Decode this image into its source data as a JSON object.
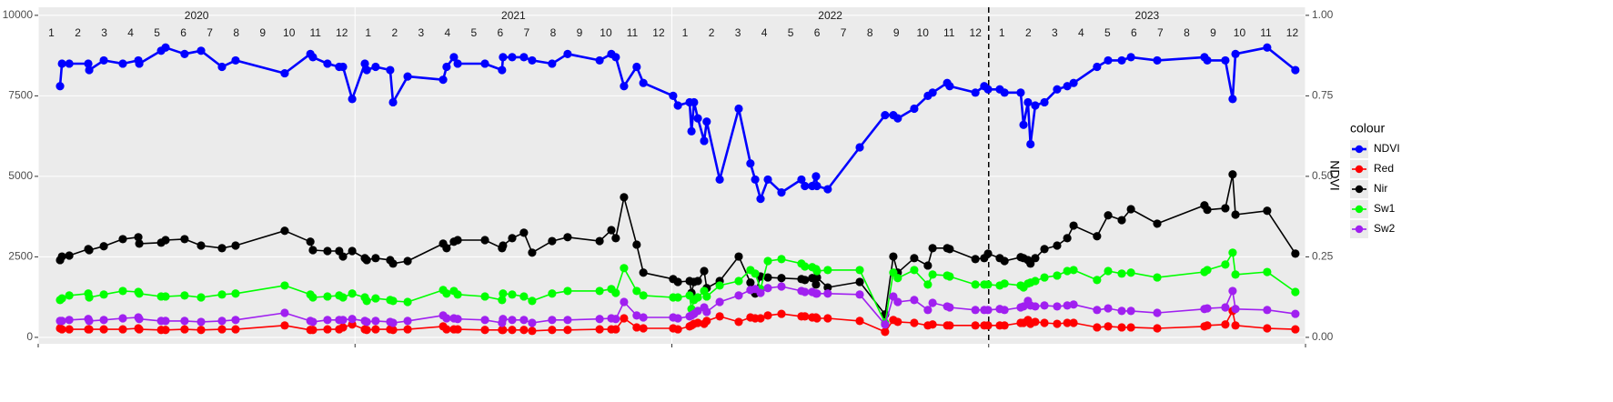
{
  "chart_data": {
    "type": "line",
    "year_labels": [
      "2020",
      "2021",
      "2022",
      "2023"
    ],
    "month_labels": [
      "1",
      "2",
      "3",
      "4",
      "5",
      "6",
      "7",
      "8",
      "9",
      "10",
      "11",
      "12"
    ],
    "y2label": "NDVI",
    "legend_title": "colour",
    "legend": "right",
    "grid": true,
    "vline": 2023,
    "xlim": [
      2020,
      2024
    ],
    "xticks": [
      2020,
      2021,
      2022,
      2023,
      2024
    ],
    "ylim": [
      -200,
      10250
    ],
    "yticks": [
      0,
      2500,
      5000,
      7500,
      10000
    ],
    "y2lim": [
      -0.02,
      1.025
    ],
    "y2ticks": [
      {
        "value": 0,
        "label": "0.00"
      },
      {
        "value": 0.25,
        "label": "0.25"
      },
      {
        "value": 0.5,
        "label": "0.50"
      },
      {
        "value": 0.75,
        "label": "0.75"
      },
      {
        "value": 1,
        "label": "1.00"
      }
    ],
    "x": [
      2020.069,
      2020.075,
      2020.098,
      2020.158,
      2020.161,
      2020.207,
      2020.267,
      2020.316,
      2020.319,
      2020.388,
      2020.402,
      2020.462,
      2020.514,
      2020.58,
      2020.623,
      2020.778,
      2020.859,
      2020.867,
      2020.913,
      2020.95,
      2020.962,
      2020.991,
      2021.031,
      2021.037,
      2021.065,
      2021.111,
      2021.12,
      2021.166,
      2021.278,
      2021.289,
      2021.312,
      2021.324,
      2021.41,
      2021.464,
      2021.467,
      2021.496,
      2021.533,
      2021.559,
      2021.622,
      2021.671,
      2021.772,
      2021.809,
      2021.823,
      2021.849,
      2021.889,
      2021.91,
      2022.004,
      2022.019,
      2022.056,
      2022.062,
      2022.07,
      2022.082,
      2022.102,
      2022.11,
      2022.151,
      2022.211,
      2022.248,
      2022.263,
      2022.28,
      2022.303,
      2022.346,
      2022.409,
      2022.42,
      2022.443,
      2022.455,
      2022.458,
      2022.492,
      2022.593,
      2022.673,
      2022.699,
      2022.713,
      2022.765,
      2022.808,
      2022.823,
      2022.869,
      2022.877,
      2022.958,
      2022.986,
      2022.998,
      2023.035,
      2023.05,
      2023.101,
      2023.11,
      2023.124,
      2023.132,
      2023.147,
      2023.176,
      2023.216,
      2023.248,
      2023.268,
      2023.342,
      2023.377,
      2023.42,
      2023.449,
      2023.532,
      2023.681,
      2023.69,
      2023.747,
      2023.77,
      2023.779,
      2023.879,
      2023.968
    ],
    "series": [
      {
        "name": "NDVI",
        "color": "#0000ff",
        "axis": "y2",
        "values": [
          0.78,
          0.85,
          0.85,
          0.85,
          0.83,
          0.86,
          0.85,
          0.86,
          0.85,
          0.89,
          0.9,
          0.88,
          0.89,
          0.84,
          0.86,
          0.82,
          0.88,
          0.87,
          0.85,
          0.84,
          0.84,
          0.74,
          0.85,
          0.83,
          0.84,
          0.83,
          0.73,
          0.81,
          0.8,
          0.84,
          0.87,
          0.85,
          0.85,
          0.83,
          0.87,
          0.87,
          0.87,
          0.86,
          0.85,
          0.88,
          0.86,
          0.88,
          0.87,
          0.78,
          0.84,
          0.79,
          0.75,
          0.72,
          0.73,
          0.64,
          0.73,
          0.68,
          0.61,
          0.67,
          0.49,
          0.71,
          0.54,
          0.49,
          0.43,
          0.49,
          0.45,
          0.49,
          0.47,
          0.47,
          0.5,
          0.47,
          0.46,
          0.59,
          0.69,
          0.69,
          0.68,
          0.71,
          0.75,
          0.76,
          0.79,
          0.78,
          0.76,
          0.78,
          0.77,
          0.77,
          0.76,
          0.76,
          0.66,
          0.73,
          0.6,
          0.72,
          0.73,
          0.77,
          0.78,
          0.79,
          0.84,
          0.86,
          0.86,
          0.87,
          0.86,
          0.87,
          0.86,
          0.86,
          0.74,
          0.88,
          0.9,
          0.83
        ]
      },
      {
        "name": "Red",
        "color": "#ff0000",
        "values": [
          280,
          250,
          250,
          250,
          250,
          250,
          250,
          280,
          250,
          230,
          230,
          250,
          230,
          250,
          250,
          370,
          230,
          230,
          250,
          250,
          310,
          400,
          250,
          230,
          250,
          250,
          230,
          250,
          340,
          250,
          250,
          250,
          230,
          230,
          230,
          230,
          230,
          200,
          230,
          230,
          250,
          250,
          250,
          590,
          310,
          280,
          280,
          250,
          340,
          370,
          420,
          450,
          420,
          510,
          650,
          480,
          620,
          590,
          590,
          680,
          730,
          650,
          650,
          620,
          620,
          590,
          590,
          510,
          170,
          540,
          480,
          450,
          370,
          400,
          370,
          370,
          370,
          370,
          370,
          370,
          370,
          450,
          450,
          540,
          420,
          480,
          450,
          420,
          450,
          450,
          310,
          340,
          310,
          310,
          280,
          340,
          370,
          400,
          820,
          370,
          280,
          250
        ]
      },
      {
        "name": "Nir",
        "color": "#000000",
        "values": [
          2400,
          2510,
          2540,
          2740,
          2710,
          2830,
          3050,
          3110,
          2910,
          2940,
          3020,
          3050,
          2850,
          2770,
          2850,
          3310,
          2970,
          2710,
          2680,
          2680,
          2510,
          2680,
          2460,
          2400,
          2460,
          2400,
          2290,
          2370,
          2910,
          2770,
          2970,
          3020,
          3020,
          2770,
          2850,
          3080,
          3250,
          2630,
          2990,
          3110,
          2990,
          3330,
          3080,
          4350,
          2880,
          2010,
          1810,
          1720,
          1750,
          1380,
          1720,
          1750,
          2060,
          1530,
          1750,
          2510,
          1700,
          1360,
          1890,
          1860,
          1840,
          1810,
          1780,
          1840,
          1640,
          1860,
          1550,
          1720,
          710,
          2510,
          2010,
          2460,
          2230,
          2770,
          2770,
          2740,
          2430,
          2460,
          2600,
          2460,
          2370,
          2490,
          2460,
          2400,
          2290,
          2460,
          2740,
          2850,
          3080,
          3470,
          3140,
          3790,
          3640,
          3980,
          3530,
          4100,
          3960,
          4010,
          5060,
          3810,
          3930,
          2600
        ]
      },
      {
        "name": "Sw1",
        "color": "#00ff00",
        "values": [
          1160,
          1210,
          1300,
          1360,
          1240,
          1330,
          1440,
          1410,
          1360,
          1270,
          1270,
          1300,
          1240,
          1330,
          1360,
          1610,
          1330,
          1240,
          1270,
          1300,
          1240,
          1360,
          1240,
          1130,
          1210,
          1160,
          1130,
          1100,
          1470,
          1360,
          1440,
          1330,
          1270,
          1160,
          1360,
          1330,
          1270,
          1130,
          1360,
          1440,
          1440,
          1500,
          1380,
          2150,
          1440,
          1300,
          1240,
          1240,
          1300,
          880,
          1160,
          1240,
          1440,
          1270,
          1610,
          1750,
          2090,
          1980,
          1500,
          2370,
          2430,
          2290,
          2200,
          2180,
          2120,
          2060,
          2090,
          2090,
          450,
          2010,
          1840,
          2090,
          1640,
          1950,
          1920,
          1890,
          1640,
          1640,
          1640,
          1610,
          1670,
          1610,
          1550,
          1670,
          1700,
          1750,
          1860,
          1920,
          2060,
          2090,
          1780,
          2060,
          1980,
          2010,
          1860,
          2030,
          2090,
          2260,
          2630,
          1950,
          2030,
          1410
        ]
      },
      {
        "name": "Sw2",
        "color": "#a020f0",
        "values": [
          510,
          510,
          540,
          570,
          510,
          540,
          590,
          620,
          570,
          510,
          510,
          510,
          480,
          510,
          540,
          760,
          510,
          480,
          540,
          540,
          540,
          570,
          510,
          480,
          510,
          480,
          450,
          510,
          680,
          590,
          590,
          570,
          540,
          450,
          570,
          540,
          540,
          450,
          540,
          540,
          570,
          590,
          570,
          1100,
          680,
          620,
          620,
          590,
          650,
          680,
          730,
          820,
          930,
          790,
          1100,
          1300,
          1470,
          1500,
          1380,
          1530,
          1580,
          1440,
          1410,
          1410,
          1360,
          1360,
          1360,
          1330,
          400,
          1270,
          1100,
          1160,
          850,
          1070,
          960,
          930,
          850,
          850,
          850,
          880,
          850,
          930,
          960,
          1130,
          990,
          960,
          990,
          960,
          990,
          1020,
          850,
          900,
          820,
          820,
          760,
          880,
          900,
          930,
          1440,
          880,
          850,
          730
        ]
      }
    ]
  }
}
